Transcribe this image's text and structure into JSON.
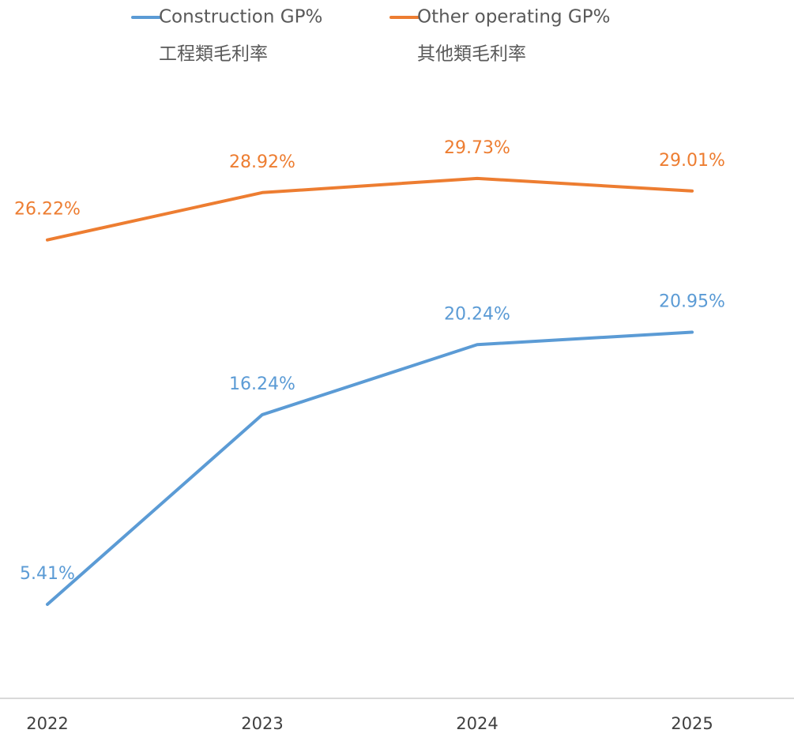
{
  "chart_data": {
    "type": "line",
    "categories": [
      "2022",
      "2023",
      "2024",
      "2025"
    ],
    "series": [
      {
        "name": "Construction GP%",
        "legend_subtitle": "工程類毛利率",
        "color": "#5b9bd5",
        "values": [
          5.41,
          16.24,
          20.24,
          20.95
        ],
        "value_labels": [
          "5.41%",
          "16.24%",
          "20.24%",
          "20.95%"
        ]
      },
      {
        "name": "Other operating GP%",
        "legend_subtitle": "其他類毛利率",
        "color": "#ed7d31",
        "values": [
          26.22,
          28.92,
          29.73,
          29.01
        ],
        "value_labels": [
          "26.22%",
          "28.92%",
          "29.73%",
          "29.01%"
        ]
      }
    ],
    "ylim": [
      0,
      35
    ],
    "legend": "top"
  }
}
